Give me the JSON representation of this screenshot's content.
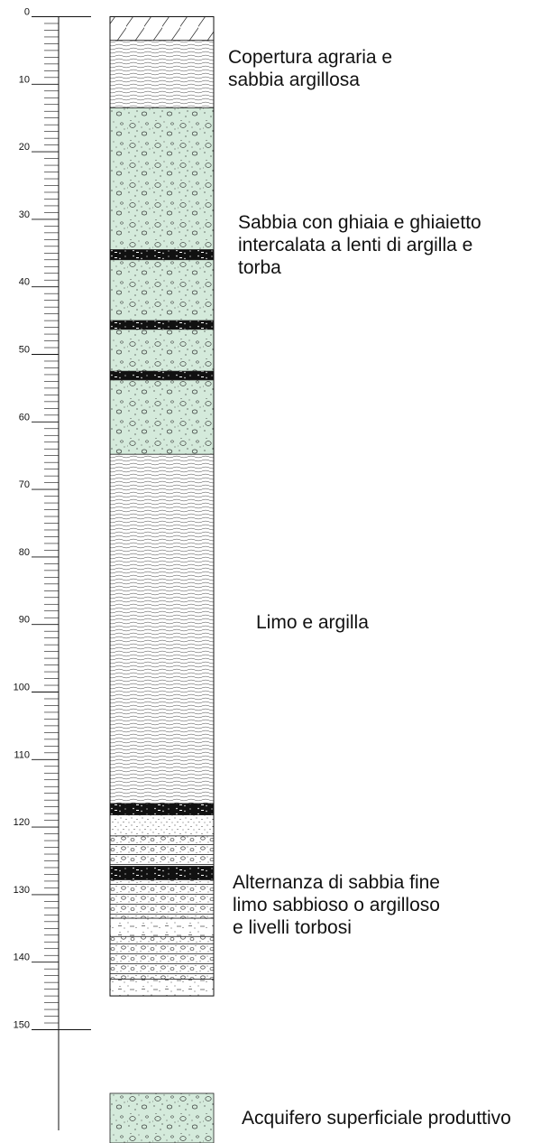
{
  "depth_scale": {
    "tick_labels": [
      "0",
      "10",
      "20",
      "30",
      "40",
      "50",
      "60",
      "70",
      "80",
      "90",
      "100",
      "110",
      "120",
      "130",
      "140",
      "150"
    ],
    "min": 0,
    "max": 150,
    "minor_step": 1,
    "major_step": 10
  },
  "column": {
    "top_depth": 0,
    "bottom_depth": 145,
    "layers": [
      {
        "name": "soil-cover",
        "pattern": "hatch",
        "from": 0,
        "to": 3.5
      },
      {
        "name": "clayey-sand",
        "pattern": "wavy",
        "from": 3.5,
        "to": 13.5
      },
      {
        "name": "sand-gravel",
        "pattern": "gravel",
        "from": 13.5,
        "to": 34.5,
        "fill": "#d4eadb"
      },
      {
        "name": "peat-lens",
        "pattern": "peat",
        "from": 34.5,
        "to": 36
      },
      {
        "name": "sand-gravel",
        "pattern": "gravel",
        "from": 36,
        "to": 45,
        "fill": "#d4eadb"
      },
      {
        "name": "peat-lens",
        "pattern": "peat",
        "from": 45,
        "to": 46.3
      },
      {
        "name": "sand-gravel",
        "pattern": "gravel",
        "from": 46.3,
        "to": 52.5,
        "fill": "#d4eadb"
      },
      {
        "name": "peat-lens",
        "pattern": "peat",
        "from": 52.5,
        "to": 53.8
      },
      {
        "name": "sand-gravel",
        "pattern": "gravel",
        "from": 53.8,
        "to": 64.8,
        "fill": "#d4eadb"
      },
      {
        "name": "silt-clay",
        "pattern": "wavy",
        "from": 64.8,
        "to": 116.5
      },
      {
        "name": "peat-lens",
        "pattern": "peat",
        "from": 116.5,
        "to": 118.2
      },
      {
        "name": "fine-sand",
        "pattern": "sand",
        "from": 118.2,
        "to": 121.3
      },
      {
        "name": "silty-sand",
        "pattern": "pebbly",
        "from": 121.3,
        "to": 125.8
      },
      {
        "name": "peat-lens",
        "pattern": "peat",
        "from": 125.8,
        "to": 127.8
      },
      {
        "name": "silty-sand",
        "pattern": "pebbly",
        "from": 127.8,
        "to": 133.5
      },
      {
        "name": "fine-sand",
        "pattern": "sanddash",
        "from": 133.5,
        "to": 136.2
      },
      {
        "name": "silty-sand",
        "pattern": "pebbly",
        "from": 136.2,
        "to": 142.5
      },
      {
        "name": "fine-sand",
        "pattern": "sanddash",
        "from": 142.5,
        "to": 145
      }
    ]
  },
  "labels": [
    {
      "text": "Copertura agraria e\nsabbia argillosa"
    },
    {
      "text": "Sabbia con ghiaia e ghiaietto\nintercalata a lenti di argilla e\ntorba"
    },
    {
      "text": "Limo e argilla"
    },
    {
      "text": "Alternanza di sabbia fine\nlimo sabbioso o argilloso\ne livelli torbosi"
    }
  ],
  "legend": {
    "aquifer_text": "Acquifero superficiale produttivo",
    "fill": "#d4eadb"
  }
}
